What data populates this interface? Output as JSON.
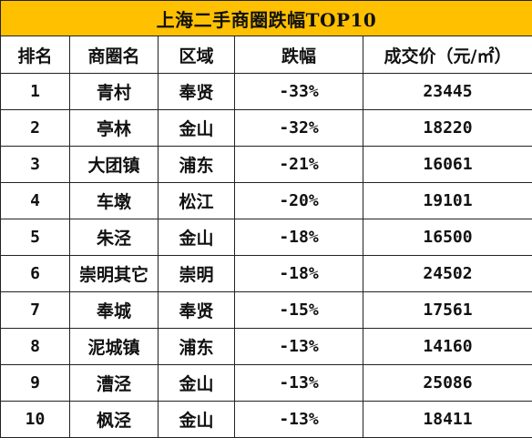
{
  "title": "上海二手商圈跌幅TOP10",
  "headers": [
    "排名",
    "商圈名",
    "区域",
    "跌幅",
    "成交价（元/㎡）"
  ],
  "rows": [
    {
      "rank": "1",
      "name": "青村",
      "district": "奉贤",
      "drop": "-33%",
      "price": "23445"
    },
    {
      "rank": "2",
      "name": "亭林",
      "district": "金山",
      "drop": "-32%",
      "price": "18220"
    },
    {
      "rank": "3",
      "name": "大团镇",
      "district": "浦东",
      "drop": "-21%",
      "price": "16061"
    },
    {
      "rank": "4",
      "name": "车墩",
      "district": "松江",
      "drop": "-20%",
      "price": "19101"
    },
    {
      "rank": "5",
      "name": "朱泾",
      "district": "金山",
      "drop": "-18%",
      "price": "16500"
    },
    {
      "rank": "6",
      "name": "崇明其它",
      "district": "崇明",
      "drop": "-18%",
      "price": "24502"
    },
    {
      "rank": "7",
      "name": "奉城",
      "district": "奉贤",
      "drop": "-15%",
      "price": "17561"
    },
    {
      "rank": "8",
      "name": "泥城镇",
      "district": "浦东",
      "drop": "-13%",
      "price": "14160"
    },
    {
      "rank": "9",
      "name": "漕泾",
      "district": "金山",
      "drop": "-13%",
      "price": "25086"
    },
    {
      "rank": "10",
      "name": "枫泾",
      "district": "金山",
      "drop": "-13%",
      "price": "18411"
    }
  ],
  "colors": {
    "title_bg": "#ffc000",
    "border": "#222222"
  }
}
